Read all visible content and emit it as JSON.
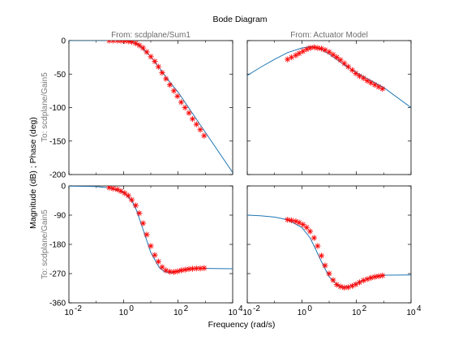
{
  "chart_data": {
    "type": "line",
    "title": "Bode Diagram",
    "xlabel": "Frequency  (rad/s)",
    "ylabel": "Magnitude (dB) ; Phase (deg)",
    "x_scale": "log",
    "xlim": [
      0.01,
      10000
    ],
    "x_ticks": [
      0.01,
      1,
      100,
      10000
    ],
    "x_tick_labels": [
      "10",
      "10",
      "10",
      "10"
    ],
    "x_tick_exponents": [
      "-2",
      "0",
      "2",
      "4"
    ],
    "line_color": "#1f77b4",
    "marker_color": "#ff0000",
    "marker": "*",
    "columns": [
      {
        "title": "From: scdplane/Sum1"
      },
      {
        "title": "From: Actuator Model"
      }
    ],
    "rows": [
      {
        "label": "To: scdplane/Gain5",
        "quantity": "magnitude",
        "ylim": [
          -200,
          0
        ],
        "y_ticks": [
          0,
          -50,
          -100,
          -150,
          -200
        ],
        "y_tick_labels": [
          "0",
          "-50",
          "-100",
          "-150",
          "-200"
        ]
      },
      {
        "label": "To: scdplane/Gain5",
        "quantity": "phase",
        "ylim": [
          -360,
          0
        ],
        "y_ticks": [
          0,
          -90,
          -180,
          -270,
          -360
        ],
        "y_tick_labels": [
          "0",
          "-90",
          "-180",
          "-270",
          "-360"
        ]
      }
    ],
    "panels": [
      {
        "row": 0,
        "col": 0,
        "line": {
          "x": [
            0.01,
            0.1,
            0.3,
            1,
            2,
            3,
            5,
            10,
            20,
            50,
            100,
            1000,
            10000
          ],
          "y": [
            0,
            0,
            0,
            -0.3,
            -1.5,
            -4.5,
            -12,
            -24,
            -40,
            -62,
            -77,
            -137,
            -197
          ]
        },
        "markers": {
          "x": [
            0.3,
            0.42,
            0.6,
            0.8,
            1.1,
            1.5,
            2.0,
            2.8,
            3.8,
            5.2,
            7.1,
            10,
            14,
            19,
            26,
            36,
            50,
            70,
            95,
            130,
            180,
            250,
            340,
            470,
            650,
            900
          ],
          "y": [
            0,
            0,
            0,
            -0.2,
            -0.5,
            -1,
            -2,
            -4,
            -7,
            -11,
            -17,
            -24,
            -31,
            -39,
            -48,
            -57,
            -66,
            -75,
            -83,
            -92,
            -100,
            -108,
            -117,
            -125,
            -133,
            -142
          ]
        }
      },
      {
        "row": 0,
        "col": 1,
        "line": {
          "x": [
            0.01,
            0.03,
            0.1,
            0.3,
            1,
            2,
            3,
            5,
            10,
            30,
            100,
            1000,
            10000
          ],
          "y": [
            -52,
            -40,
            -28,
            -18,
            -11,
            -9,
            -10,
            -13,
            -20,
            -34,
            -48,
            -70,
            -100
          ]
        },
        "markers": {
          "x": [
            0.3,
            0.42,
            0.6,
            0.8,
            1.1,
            1.5,
            2.0,
            2.8,
            3.8,
            5.2,
            7.1,
            10,
            14,
            19,
            26,
            36,
            50,
            70,
            95,
            130,
            180,
            250,
            340,
            470,
            650,
            900
          ],
          "y": [
            -28,
            -25,
            -22,
            -19,
            -16,
            -13,
            -11,
            -10,
            -11,
            -12,
            -14,
            -17,
            -21,
            -25,
            -29,
            -34,
            -39,
            -44,
            -49,
            -53,
            -56,
            -60,
            -63,
            -66,
            -69,
            -72
          ]
        }
      },
      {
        "row": 1,
        "col": 0,
        "line": {
          "x": [
            0.01,
            0.1,
            0.3,
            1,
            2,
            3,
            5,
            10,
            20,
            30,
            50,
            100,
            200,
            500,
            1000,
            10000
          ],
          "y": [
            -0.5,
            -2,
            -6,
            -20,
            -45,
            -75,
            -130,
            -205,
            -250,
            -263,
            -268,
            -263,
            -256,
            -253,
            -254,
            -255
          ]
        },
        "markers": {
          "x": [
            0.3,
            0.42,
            0.6,
            0.8,
            1.1,
            1.5,
            2.0,
            2.8,
            3.8,
            5.2,
            7.1,
            10,
            14,
            19,
            26,
            36,
            50,
            70,
            95,
            130,
            180,
            250,
            340,
            470,
            650,
            900
          ],
          "y": [
            -5,
            -8,
            -11,
            -16,
            -22,
            -30,
            -43,
            -60,
            -84,
            -115,
            -150,
            -185,
            -213,
            -233,
            -250,
            -260,
            -264,
            -265,
            -263,
            -260,
            -258,
            -256,
            -255,
            -254,
            -254,
            -253
          ]
        }
      },
      {
        "row": 1,
        "col": 1,
        "line": {
          "x": [
            0.01,
            0.03,
            0.1,
            0.3,
            1,
            2,
            3,
            5,
            10,
            20,
            30,
            50,
            100,
            200,
            500,
            1000,
            10000
          ],
          "y": [
            -90,
            -92,
            -96,
            -104,
            -128,
            -160,
            -190,
            -230,
            -280,
            -305,
            -312,
            -310,
            -300,
            -288,
            -278,
            -275,
            -274
          ]
        },
        "markers": {
          "x": [
            0.3,
            0.42,
            0.6,
            0.8,
            1.1,
            1.5,
            2.0,
            2.8,
            3.8,
            5.2,
            7.1,
            10,
            14,
            19,
            26,
            36,
            50,
            70,
            95,
            130,
            180,
            250,
            340,
            470,
            650,
            900
          ],
          "y": [
            -104,
            -106,
            -109,
            -113,
            -119,
            -128,
            -140,
            -160,
            -185,
            -215,
            -245,
            -270,
            -290,
            -304,
            -310,
            -313,
            -312,
            -308,
            -303,
            -297,
            -291,
            -287,
            -283,
            -280,
            -278,
            -276
          ]
        }
      }
    ]
  }
}
